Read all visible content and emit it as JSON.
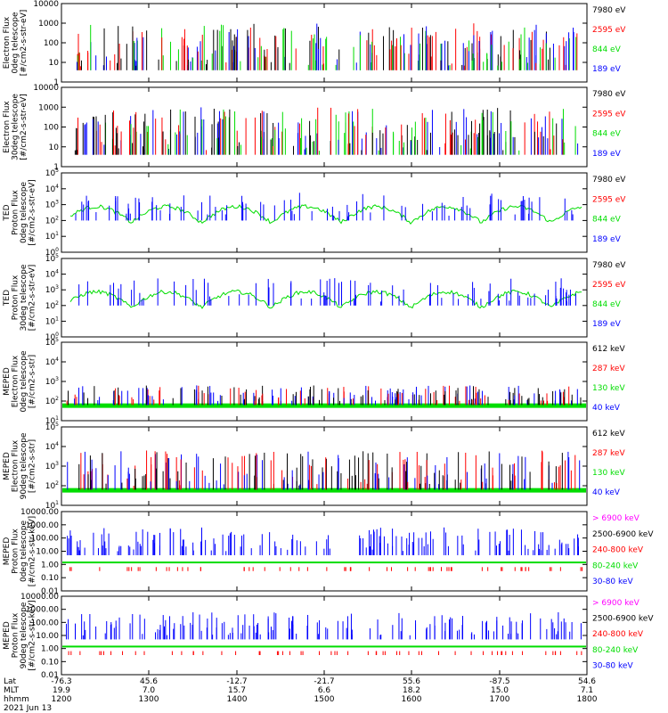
{
  "date_label": "2021 Jun 13",
  "xaxis": {
    "row_labels": [
      "Lat",
      "MLT",
      "hhmm"
    ],
    "ticks": [
      {
        "lat": "-76.3",
        "mlt": "19.9",
        "hhmm": "1200"
      },
      {
        "lat": "45.6",
        "mlt": "7.0",
        "hhmm": "1300"
      },
      {
        "lat": "-12.7",
        "mlt": "15.7",
        "hhmm": "1400"
      },
      {
        "lat": "-21.7",
        "mlt": "6.6",
        "hhmm": "1500"
      },
      {
        "lat": "55.6",
        "mlt": "18.2",
        "hhmm": "1600"
      },
      {
        "lat": "-87.5",
        "mlt": "15.0",
        "hhmm": "1700"
      },
      {
        "lat": "54.6",
        "mlt": "7.1",
        "hhmm": "1800"
      }
    ]
  },
  "colors": {
    "blue": "#0000ff",
    "green": "#00dd00",
    "red": "#ff0000",
    "black": "#000000",
    "magenta": "#ff00ff"
  },
  "chart_data": [
    {
      "type": "line",
      "ylabel": [
        "Electron Flux",
        "0deg telescope",
        "[#/cm2-s-str-eV]"
      ],
      "ylim": [
        1,
        10000
      ],
      "log": true,
      "ytick_labels": [
        "1",
        "10",
        "100",
        "1000",
        "10000"
      ],
      "legend": [
        {
          "label": "7980 eV",
          "color": "#000000"
        },
        {
          "label": "2595 eV",
          "color": "#ff0000"
        },
        {
          "label": "844 eV",
          "color": "#00dd00"
        },
        {
          "label": "189 eV",
          "color": "#0000ff"
        }
      ]
    },
    {
      "type": "line",
      "ylabel": [
        "Electron Flux",
        "30deg telescope",
        "[#/cm2-s-str-eV]"
      ],
      "ylim": [
        1,
        10000
      ],
      "log": true,
      "ytick_labels": [
        "1",
        "10",
        "100",
        "1000",
        "10000"
      ],
      "legend": [
        {
          "label": "7980 eV",
          "color": "#000000"
        },
        {
          "label": "2595 eV",
          "color": "#ff0000"
        },
        {
          "label": "844 eV",
          "color": "#00dd00"
        },
        {
          "label": "189 eV",
          "color": "#0000ff"
        }
      ]
    },
    {
      "type": "line",
      "ylabel": [
        "TED",
        "Proton Flux",
        "0deg telescope",
        "[#/cm2-s-str-eV]"
      ],
      "ylim": [
        1,
        100000
      ],
      "log": true,
      "ytick_labels": [
        "10^0",
        "10^1",
        "10^2",
        "10^3",
        "10^4",
        "10^5"
      ],
      "legend": [
        {
          "label": "7980 eV",
          "color": "#000000"
        },
        {
          "label": "2595 eV",
          "color": "#ff0000"
        },
        {
          "label": "844 eV",
          "color": "#00dd00"
        },
        {
          "label": "189 eV",
          "color": "#0000ff"
        }
      ]
    },
    {
      "type": "line",
      "ylabel": [
        "TED",
        "Proton Flux",
        "30deg telescope",
        "[#/cm2-s-str-eV]"
      ],
      "ylim": [
        1,
        100000
      ],
      "log": true,
      "ytick_labels": [
        "10^0",
        "10^1",
        "10^2",
        "10^3",
        "10^4",
        "10^5"
      ],
      "legend": [
        {
          "label": "7980 eV",
          "color": "#000000"
        },
        {
          "label": "2595 eV",
          "color": "#ff0000"
        },
        {
          "label": "844 eV",
          "color": "#00dd00"
        },
        {
          "label": "189 eV",
          "color": "#0000ff"
        }
      ]
    },
    {
      "type": "line",
      "ylabel": [
        "MEPED",
        "Electron Flux",
        "0deg telescope",
        "[#/cm2-s-str]"
      ],
      "ylim": [
        10,
        100000
      ],
      "log": true,
      "ytick_labels": [
        "10^1",
        "10^2",
        "10^3",
        "10^4",
        "10^5"
      ],
      "legend": [
        {
          "label": "612 keV",
          "color": "#000000"
        },
        {
          "label": "287 keV",
          "color": "#ff0000"
        },
        {
          "label": "130 keV",
          "color": "#00dd00"
        },
        {
          "label": "40 keV",
          "color": "#0000ff"
        }
      ]
    },
    {
      "type": "line",
      "ylabel": [
        "MEPED",
        "Electron Flux",
        "90deg telescope",
        "[#/cm2-s-str]"
      ],
      "ylim": [
        10,
        100000
      ],
      "log": true,
      "ytick_labels": [
        "10^1",
        "10^2",
        "10^3",
        "10^4",
        "10^5"
      ],
      "legend": [
        {
          "label": "612 keV",
          "color": "#000000"
        },
        {
          "label": "287 keV",
          "color": "#ff0000"
        },
        {
          "label": "130 keV",
          "color": "#00dd00"
        },
        {
          "label": "40 keV",
          "color": "#0000ff"
        }
      ]
    },
    {
      "type": "line",
      "ylabel": [
        "MEPED",
        "Proton Flux",
        "0deg telescope",
        "[#/cm2-s-str-keV]"
      ],
      "ylim": [
        0.01,
        10000
      ],
      "log": true,
      "ytick_labels": [
        "0.01",
        "0.10",
        "1.00",
        "10.00",
        "100.00",
        "1000.00",
        "10000.00"
      ],
      "legend": [
        {
          "label": "> 6900 keV",
          "color": "#ff00ff"
        },
        {
          "label": "2500-6900 keV",
          "color": "#000000"
        },
        {
          "label": "240-800 keV",
          "color": "#ff0000"
        },
        {
          "label": "80-240 keV",
          "color": "#00dd00"
        },
        {
          "label": "30-80 keV",
          "color": "#0000ff"
        }
      ]
    },
    {
      "type": "line",
      "ylabel": [
        "MEPED",
        "Proton Flux",
        "90deg telescope",
        "[#/cm2-s-str-keV]"
      ],
      "ylim": [
        0.01,
        10000
      ],
      "log": true,
      "ytick_labels": [
        "0.01",
        "0.10",
        "1.00",
        "10.00",
        "100.00",
        "1000.00",
        "10000.00"
      ],
      "legend": [
        {
          "label": "> 6900 keV",
          "color": "#ff00ff"
        },
        {
          "label": "2500-6900 keV",
          "color": "#000000"
        },
        {
          "label": "240-800 keV",
          "color": "#ff0000"
        },
        {
          "label": "80-240 keV",
          "color": "#00dd00"
        },
        {
          "label": "30-80 keV",
          "color": "#0000ff"
        }
      ]
    }
  ]
}
